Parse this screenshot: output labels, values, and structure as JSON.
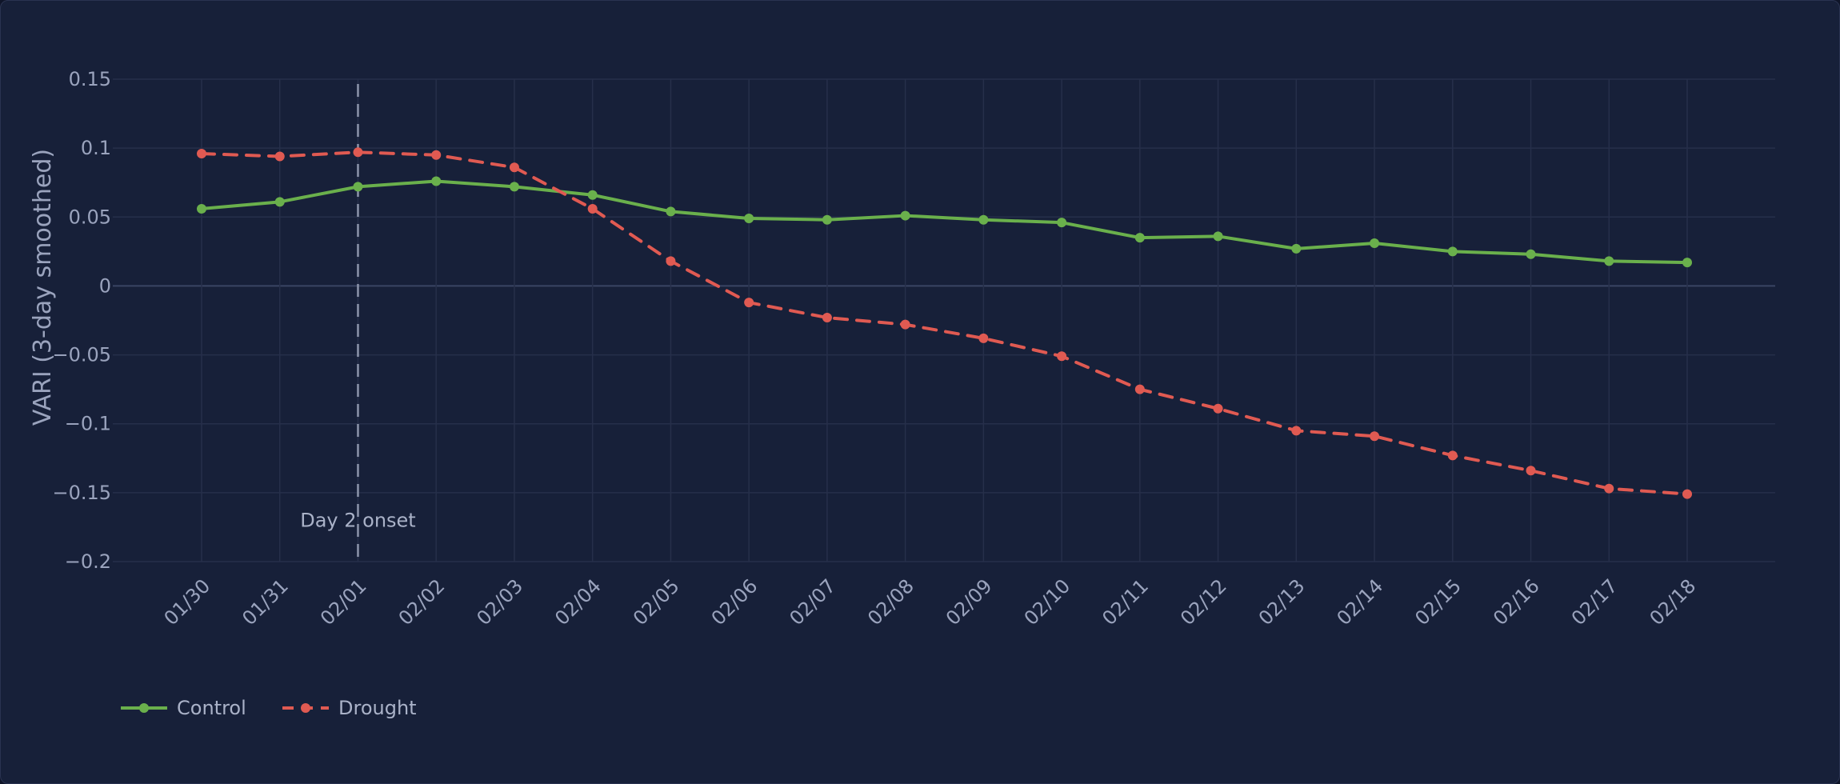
{
  "chart_data": {
    "type": "line",
    "ylabel": "VARI (3-day smoothed)",
    "xlabel": "",
    "ylim": [
      -0.2,
      0.15
    ],
    "yticks": [
      0.15,
      0.1,
      0.05,
      0,
      -0.05,
      -0.1,
      -0.15,
      -0.2
    ],
    "ytick_labels": [
      "0.15",
      "0.1",
      "0.05",
      "0",
      "−0.05",
      "−0.1",
      "−0.15",
      "−0.2"
    ],
    "categories": [
      "01/30",
      "01/31",
      "02/01",
      "02/02",
      "02/03",
      "02/04",
      "02/05",
      "02/06",
      "02/07",
      "02/08",
      "02/09",
      "02/10",
      "02/11",
      "02/12",
      "02/13",
      "02/14",
      "02/15",
      "02/16",
      "02/17",
      "02/18"
    ],
    "series": [
      {
        "name": "Control",
        "color": "#6ab04c",
        "dash": "solid",
        "values": [
          0.056,
          0.061,
          0.072,
          0.076,
          0.072,
          0.066,
          0.054,
          0.049,
          0.048,
          0.051,
          0.048,
          0.046,
          0.035,
          0.036,
          0.027,
          0.031,
          0.025,
          0.023,
          0.018,
          0.017
        ]
      },
      {
        "name": "Drought",
        "color": "#e05a52",
        "dash": "dashed",
        "values": [
          0.096,
          0.094,
          0.097,
          0.095,
          0.086,
          0.056,
          0.018,
          -0.012,
          -0.023,
          -0.028,
          -0.038,
          -0.051,
          -0.075,
          -0.089,
          -0.105,
          -0.109,
          -0.123,
          -0.134,
          -0.147,
          -0.151
        ]
      }
    ],
    "annotations": [
      {
        "type": "vline",
        "x": "02/01",
        "label": "Day 2 onset"
      }
    ],
    "grid": true,
    "legend_position": "bottom-left"
  }
}
